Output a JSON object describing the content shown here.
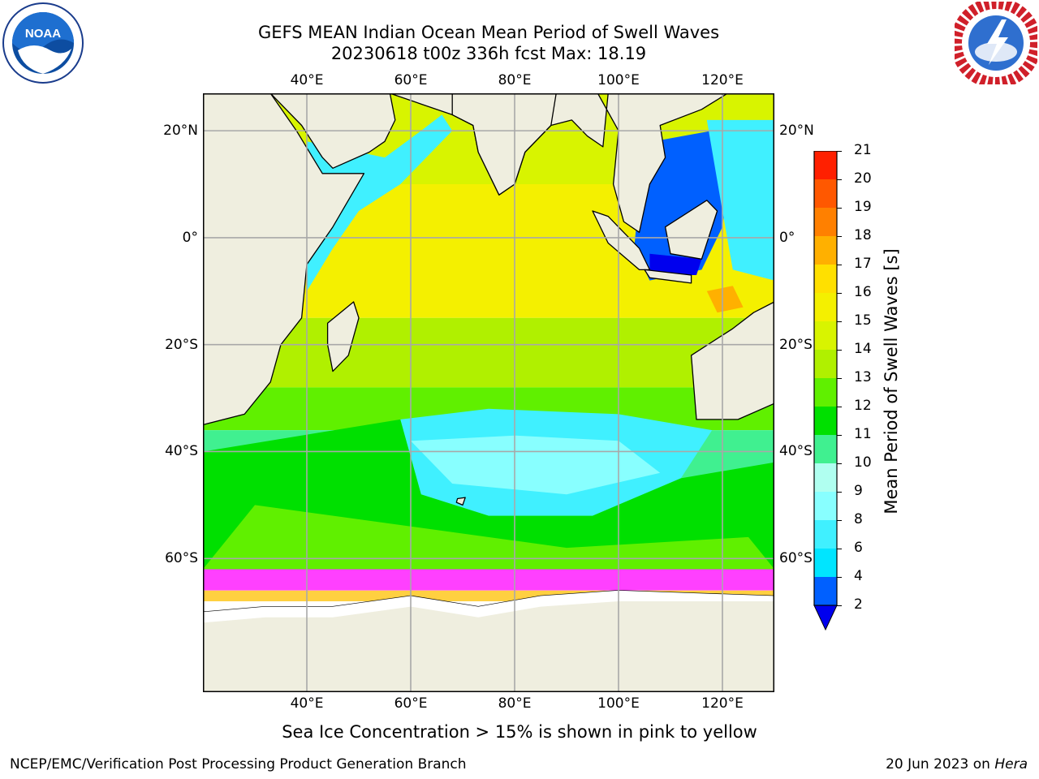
{
  "header": {
    "title_line1": "GEFS MEAN Indian Ocean Mean Period of Swell Waves",
    "title_line2": "20230618 t00z 336h fcst   Max: 18.19"
  },
  "logos": {
    "left": "NOAA",
    "right": "NATIONAL WEATHER SERVICE"
  },
  "map": {
    "lon_ticks": [
      "40°E",
      "60°E",
      "80°E",
      "100°E",
      "120°E"
    ],
    "lat_ticks": [
      "20°N",
      "0°",
      "20°S",
      "40°S",
      "60°S"
    ],
    "lon_values": [
      40,
      60,
      80,
      100,
      120
    ],
    "lat_values": [
      20,
      0,
      -20,
      -40,
      -60
    ],
    "extent": {
      "lon": [
        20,
        130
      ],
      "lat": [
        -85,
        27
      ]
    },
    "grid": true,
    "colors": {
      "land": "#efeedf",
      "ice": "#ffffff",
      "coast": "#000000"
    }
  },
  "colorbar": {
    "label": "Mean Period of Swell Waves [s]",
    "ticks": [
      "2",
      "4",
      "6",
      "8",
      "9",
      "10",
      "11",
      "12",
      "13",
      "14",
      "15",
      "16",
      "17",
      "18",
      "19",
      "20",
      "21"
    ],
    "colors": [
      "#0060ff",
      "#00e5ff",
      "#40f0ff",
      "#88ffff",
      "#b0fff0",
      "#40f090",
      "#00e000",
      "#60f000",
      "#b0f000",
      "#d8f400",
      "#f4f000",
      "#ffe000",
      "#ffb000",
      "#ff8000",
      "#ff5800",
      "#ff2000"
    ],
    "extend_min_color": "#0000ee"
  },
  "note": "Sea Ice Concentration > 15% is shown in pink to yellow",
  "footer": {
    "left": "NCEP/EMC/Verification Post Processing Product Generation Branch",
    "right_date": "20 Jun 2023 on ",
    "right_host": "Hera"
  }
}
